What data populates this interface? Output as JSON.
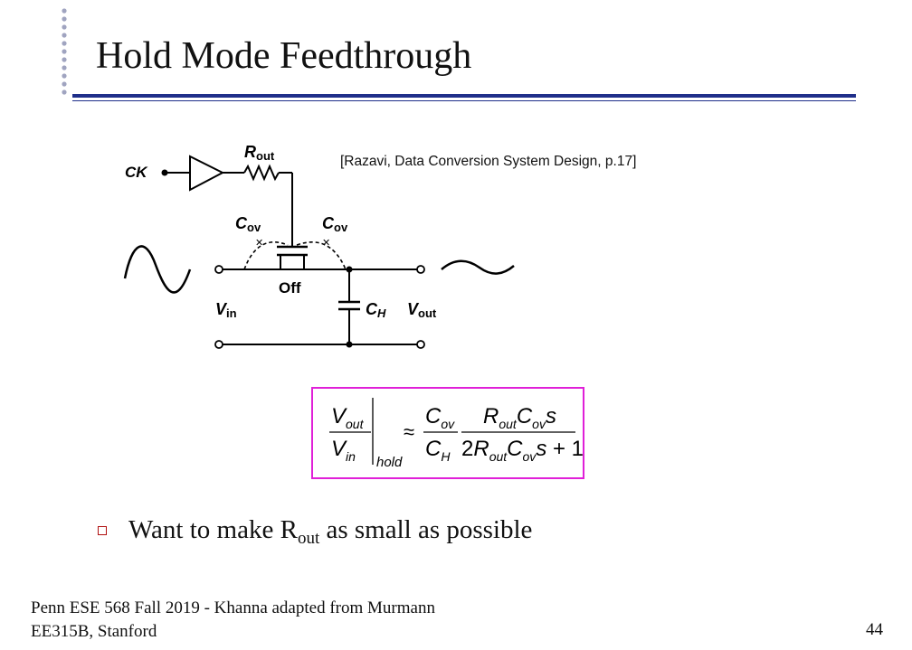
{
  "slide": {
    "title": "Hold Mode Feedthrough",
    "page_number": "44",
    "footer_line1": "Penn ESE 568 Fall 2019 - Khanna adapted from Murmann",
    "footer_line2": "EE315B, Stanford"
  },
  "figure": {
    "citation": "[Razavi, Data Conversion System Design, p.17]",
    "labels": {
      "ck": "CK",
      "r": "R",
      "r_sub": "out",
      "cov_left": "C",
      "cov_left_sub": "ov",
      "cov_right": "C",
      "cov_right_sub": "ov",
      "off": "Off",
      "vin": "V",
      "vin_sub": "in",
      "ch": "C",
      "ch_sub": "H",
      "vout": "V",
      "vout_sub": "out"
    }
  },
  "equation": {
    "lhs_num": "V",
    "lhs_num_sub": "out",
    "lhs_den": "V",
    "lhs_den_sub": "in",
    "hold": "hold",
    "approx": "≈",
    "f1_num": "C",
    "f1_num_sub": "ov",
    "f1_den": "C",
    "f1_den_sub": "H",
    "f2_num_a": "R",
    "f2_num_a_sub": "out",
    "f2_num_b": "C",
    "f2_num_b_sub": "ov",
    "f2_num_s": "s",
    "f2_den_a": "2R",
    "f2_den_a_sub": "out",
    "f2_den_b": "C",
    "f2_den_b_sub": "ov",
    "f2_den_tail": "s + 1"
  },
  "bullet": {
    "text_before": "Want to make R",
    "sub": "out",
    "text_after": " as small as possible"
  },
  "colors": {
    "title_rule": "#1f2f8a",
    "equation_border": "#e020d8",
    "bullet": "#b01010",
    "dots": "#a0a4c0"
  }
}
